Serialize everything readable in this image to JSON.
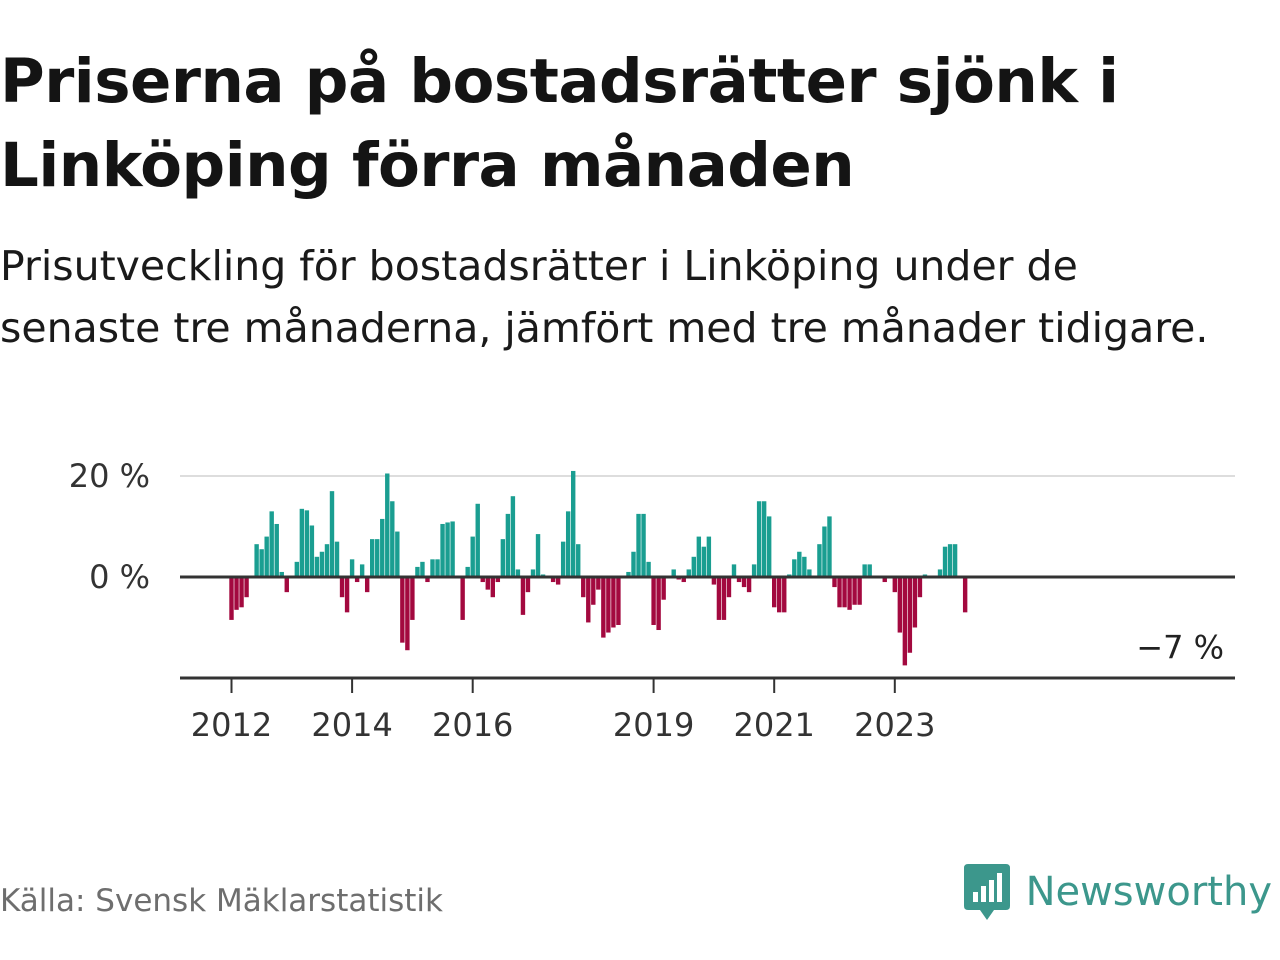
{
  "header": {
    "title": "Priserna på bostadsrätter sjönk i Linköping förra månaden",
    "subtitle": "Prisutveckling för bostadsrätter i Linköping under de senaste tre månaderna, jämfört med tre månader tidigare."
  },
  "footer": {
    "source": "Källa: Svensk Mäklarstatistik",
    "brand": "Newsworthy"
  },
  "colors": {
    "positive": "#1a9e91",
    "negative": "#a3093f",
    "axis": "#333333",
    "grid": "#dddddd",
    "brand": "#3c978c"
  },
  "icons": {
    "brand": "bar-chart-speech-bubble-icon"
  },
  "chart_data": {
    "type": "bar",
    "title": "Priserna på bostadsrätter sjönk i Linköping förra månaden",
    "subtitle": "Prisutveckling för bostadsrätter i Linköping under de senaste tre månaderna, jämfört med tre månader tidigare.",
    "ylim": [
      -20,
      20
    ],
    "y_ticks": [
      {
        "value": 0,
        "label": "0 %"
      },
      {
        "value": 20,
        "label": "20 %"
      }
    ],
    "x_ticks": [
      {
        "label": "2012",
        "index": 0
      },
      {
        "label": "2014",
        "index": 24
      },
      {
        "label": "2016",
        "index": 48
      },
      {
        "label": "2019",
        "index": 84
      },
      {
        "label": "2021",
        "index": 108
      },
      {
        "label": "2023",
        "index": 132
      }
    ],
    "grid": true,
    "start": "2012-01",
    "frequency": "monthly",
    "end_label": "−7 %",
    "values": [
      -8.5,
      -6.5,
      -6,
      -4,
      0,
      6.5,
      5.5,
      8,
      13,
      10.5,
      1,
      -3,
      0,
      3,
      13.5,
      13.2,
      10.2,
      4,
      5,
      6.5,
      17,
      7,
      -4,
      -7,
      3.5,
      -1,
      2.5,
      -3,
      7.5,
      7.5,
      11.5,
      20.5,
      15,
      9,
      -13,
      -14.5,
      -8.5,
      2,
      3,
      -1,
      3.5,
      3.5,
      10.5,
      10.8,
      11,
      0,
      -8.5,
      2,
      8,
      14.5,
      -1,
      -2.5,
      -4,
      -1,
      7.5,
      12.5,
      16,
      1.5,
      -7.5,
      -3,
      1.5,
      8.5,
      0.5,
      0,
      -1,
      -1.5,
      7,
      13,
      21,
      6.5,
      -4,
      -9,
      -5.5,
      -2.5,
      -12,
      -11,
      -10,
      -9.5,
      0,
      1,
      5,
      12.5,
      12.5,
      3,
      -9.5,
      -10.5,
      -4.5,
      0,
      1.5,
      -0.5,
      -1,
      1.5,
      4,
      8,
      6,
      8,
      -1.5,
      -8.5,
      -8.5,
      -4,
      2.5,
      -1,
      -2,
      -3,
      2.5,
      15,
      15,
      12,
      -6,
      -7,
      -7,
      0.5,
      3.5,
      5,
      4,
      1.5,
      0,
      6.5,
      10,
      12,
      -2,
      -6,
      -6,
      -6.5,
      -5.5,
      -5.5,
      2.5,
      2.5,
      0,
      0,
      -1,
      0,
      -3,
      -11,
      -17.5,
      -15,
      -10,
      -4,
      0.5,
      0,
      0,
      1.5,
      6,
      6.5,
      6.5,
      0,
      -7
    ]
  }
}
